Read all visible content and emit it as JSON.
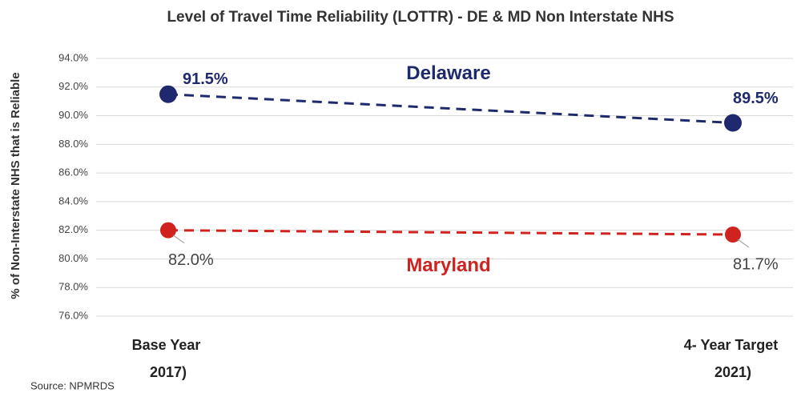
{
  "chart_data": {
    "type": "line",
    "title": "Level of Travel Time Reliability (LOTTR) - DE & MD Non Interstate NHS",
    "y_label": "% of Non-Interstate NHS that is Reliable",
    "source": "Source: NPMRDS",
    "categories": [
      "Base Year (2017)",
      "4- Year Target (2021)"
    ],
    "series": [
      {
        "name": "Delaware",
        "color": "#1f2a6e",
        "values": [
          91.5,
          89.5
        ],
        "value_labels": [
          "91.5%",
          "89.5%"
        ]
      },
      {
        "name": "Maryland",
        "color": "#d0221e",
        "values": [
          82.0,
          81.7
        ],
        "value_labels": [
          "82.0%",
          "81.7%"
        ]
      }
    ],
    "ylim": [
      76,
      94
    ],
    "yticks": [
      {
        "value": 76,
        "label": "76.0%"
      },
      {
        "value": 78,
        "label": "78.0%"
      },
      {
        "value": 80,
        "label": "80.0%"
      },
      {
        "value": 82,
        "label": "82.0%"
      },
      {
        "value": 84,
        "label": "84.0%"
      },
      {
        "value": 86,
        "label": "86.0%"
      },
      {
        "value": 88,
        "label": "88.0%"
      },
      {
        "value": 90,
        "label": "90.0%"
      },
      {
        "value": 92,
        "label": "92.0%"
      },
      {
        "value": 94,
        "label": "94.0%"
      }
    ],
    "grid": true
  }
}
